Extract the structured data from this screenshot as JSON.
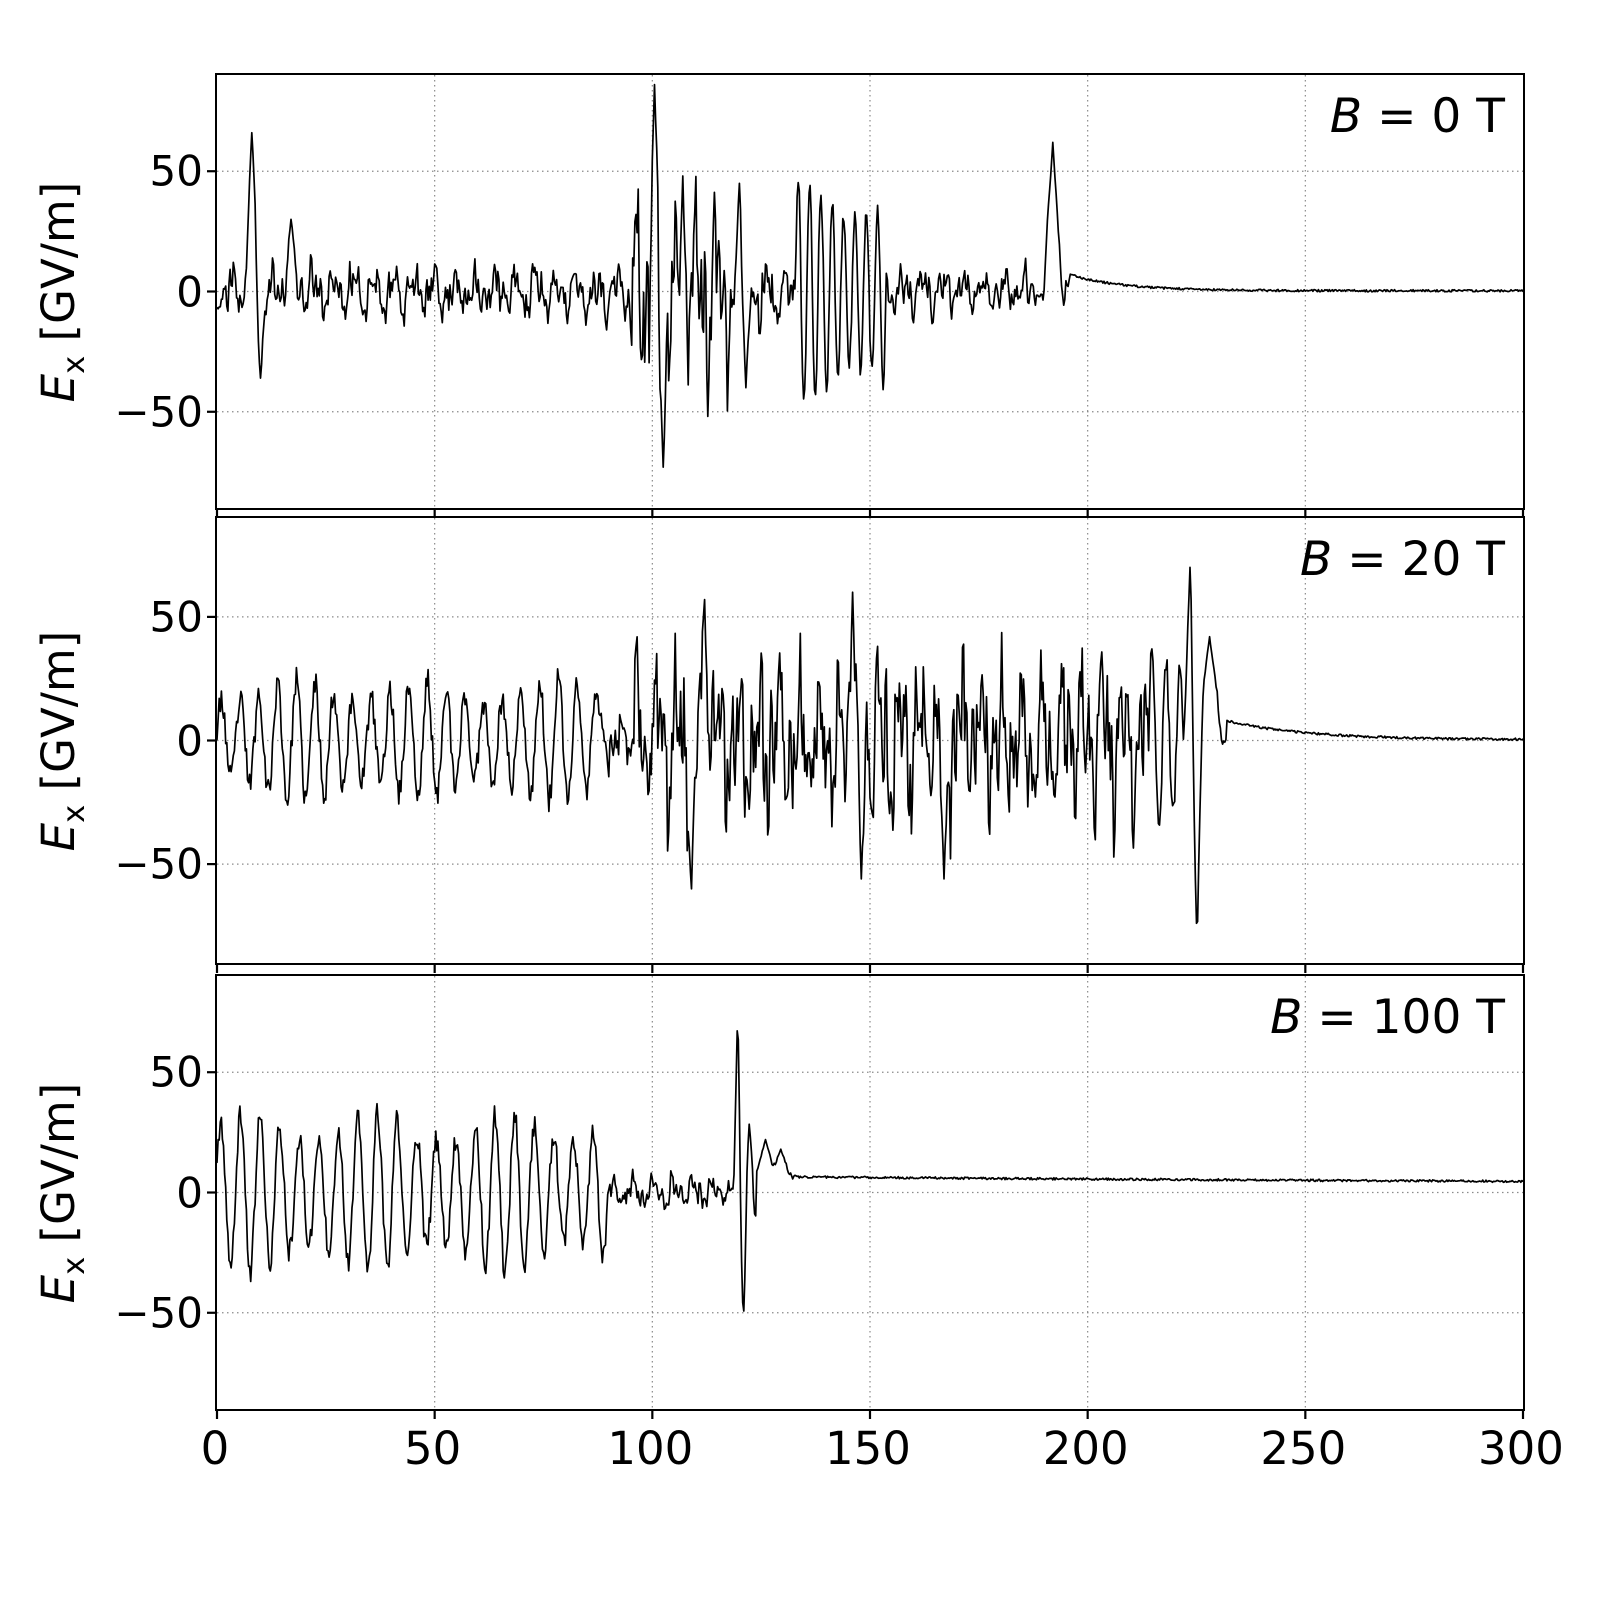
{
  "figure": {
    "background": "#ffffff",
    "line_color": "#000000",
    "grid_color": "#8a8a8a",
    "frame_color": "#000000"
  },
  "chart_data": [
    {
      "type": "line",
      "title": "",
      "xlabel": "",
      "annotation": {
        "var": "B",
        "rest": " = 0 T",
        "text": "B = 0 T"
      },
      "ylabel": {
        "var": "E",
        "sub": "x",
        "rest": " [GV/m]",
        "text": "E_x [GV/m]"
      },
      "xlim": [
        0,
        300
      ],
      "ylim": [
        -90,
        90
      ],
      "xticks": [
        0,
        50,
        100,
        150,
        200,
        250,
        300
      ],
      "yticks": [
        50,
        0,
        -50
      ],
      "grid_x": [
        50,
        100,
        150,
        200,
        250
      ],
      "grid_y": [
        50,
        0,
        -50
      ],
      "show_x_tick_labels": false,
      "legend": "none",
      "grid": "dotted",
      "seed": 11,
      "segments": [
        {
          "x0": 0,
          "x1": 95,
          "type": "noise",
          "amp": 13
        },
        {
          "x0": 95,
          "x1": 118,
          "type": "noise",
          "amp": 42
        },
        {
          "x0": 118,
          "x1": 133,
          "type": "noise",
          "amp": 18
        },
        {
          "x0": 133,
          "x1": 154,
          "type": "osc",
          "amp": 40,
          "period": 2.6,
          "jitter": 0.2
        },
        {
          "x0": 154,
          "x1": 187,
          "type": "noise",
          "amp": 11
        },
        {
          "x0": 187,
          "x1": 196,
          "type": "noise",
          "amp": 6
        },
        {
          "x0": 196,
          "x1": 300,
          "type": "decay",
          "from": 7,
          "to": 0.3,
          "tau": 12
        }
      ],
      "spikes": [
        {
          "x": 8,
          "y": 66,
          "w": 1.6
        },
        {
          "x": 10,
          "y": -36,
          "w": 1.2
        },
        {
          "x": 17,
          "y": 30,
          "w": 1.6
        },
        {
          "x": 100.5,
          "y": 86,
          "w": 1.2
        },
        {
          "x": 102.5,
          "y": -73,
          "w": 1.2
        },
        {
          "x": 107,
          "y": 48,
          "w": 1.0
        },
        {
          "x": 120,
          "y": 45,
          "w": 1.2
        },
        {
          "x": 121.5,
          "y": -40,
          "w": 1.2
        },
        {
          "x": 192,
          "y": 62,
          "w": 2.2
        }
      ]
    },
    {
      "type": "line",
      "title": "",
      "xlabel": "",
      "annotation": {
        "var": "B",
        "rest": " = 20 T",
        "text": "B = 20 T"
      },
      "ylabel": {
        "var": "E",
        "sub": "x",
        "rest": " [GV/m]",
        "text": "E_x [GV/m]"
      },
      "xlim": [
        0,
        300
      ],
      "ylim": [
        -90,
        90
      ],
      "xticks": [
        0,
        50,
        100,
        150,
        200,
        250,
        300
      ],
      "yticks": [
        50,
        0,
        -50
      ],
      "grid_x": [
        50,
        100,
        150,
        200,
        250
      ],
      "grid_y": [
        50,
        0,
        -50
      ],
      "show_x_tick_labels": false,
      "legend": "none",
      "grid": "dotted",
      "seed": 23,
      "segments": [
        {
          "x0": 0,
          "x1": 88,
          "type": "osc",
          "amp": 20,
          "period": 4.3,
          "jitter": 0.55
        },
        {
          "x0": 88,
          "x1": 96,
          "type": "noise",
          "amp": 14
        },
        {
          "x0": 96,
          "x1": 214,
          "type": "noise",
          "amp": 38
        },
        {
          "x0": 214,
          "x1": 222,
          "type": "osc",
          "amp": 32,
          "period": 3.2,
          "jitter": 0.3
        },
        {
          "x0": 222,
          "x1": 232,
          "type": "noise",
          "amp": 6
        },
        {
          "x0": 232,
          "x1": 300,
          "type": "decay",
          "from": 8,
          "to": 0.3,
          "tau": 18
        }
      ],
      "spikes": [
        {
          "x": 109,
          "y": -60,
          "w": 1.2
        },
        {
          "x": 112,
          "y": 57,
          "w": 1.2
        },
        {
          "x": 146,
          "y": 60,
          "w": 1.2
        },
        {
          "x": 148,
          "y": -56,
          "w": 1.2
        },
        {
          "x": 167,
          "y": -56,
          "w": 1.2
        },
        {
          "x": 223.5,
          "y": 70,
          "w": 1.4
        },
        {
          "x": 225.2,
          "y": -87,
          "w": 1.4
        },
        {
          "x": 228,
          "y": 42,
          "w": 3.0
        }
      ]
    },
    {
      "type": "line",
      "title": "",
      "xlabel": "",
      "annotation": {
        "var": "B",
        "rest": " = 100 T",
        "text": "B = 100 T"
      },
      "ylabel": {
        "var": "E",
        "sub": "x",
        "rest": " [GV/m]",
        "text": "E_x [GV/m]"
      },
      "xlim": [
        0,
        300
      ],
      "ylim": [
        -90,
        90
      ],
      "xticks": [
        0,
        50,
        100,
        150,
        200,
        250,
        300
      ],
      "yticks": [
        50,
        0,
        -50
      ],
      "grid_x": [
        50,
        100,
        150,
        200,
        250
      ],
      "grid_y": [
        50,
        0,
        -50
      ],
      "show_x_tick_labels": true,
      "legend": "none",
      "grid": "dotted",
      "seed": 37,
      "segments": [
        {
          "x0": 0,
          "x1": 90,
          "type": "osc",
          "amp": 27,
          "period": 4.5,
          "jitter": 0.35
        },
        {
          "x0": 90,
          "x1": 117,
          "type": "noise",
          "amp": 8
        },
        {
          "x0": 117,
          "x1": 124,
          "type": "noise",
          "amp": 9
        },
        {
          "x0": 124,
          "x1": 133,
          "type": "flat",
          "level": 7
        },
        {
          "x0": 133,
          "x1": 300,
          "type": "decay",
          "from": 6.5,
          "to": 3,
          "tau": 220
        }
      ],
      "spikes": [
        {
          "x": 119.6,
          "y": 75,
          "w": 1.0
        },
        {
          "x": 120.9,
          "y": -55,
          "w": 1.0
        },
        {
          "x": 122.3,
          "y": 30,
          "w": 0.9
        },
        {
          "x": 126,
          "y": 22,
          "w": 2.2
        },
        {
          "x": 129.5,
          "y": 18,
          "w": 2.2
        }
      ]
    }
  ]
}
